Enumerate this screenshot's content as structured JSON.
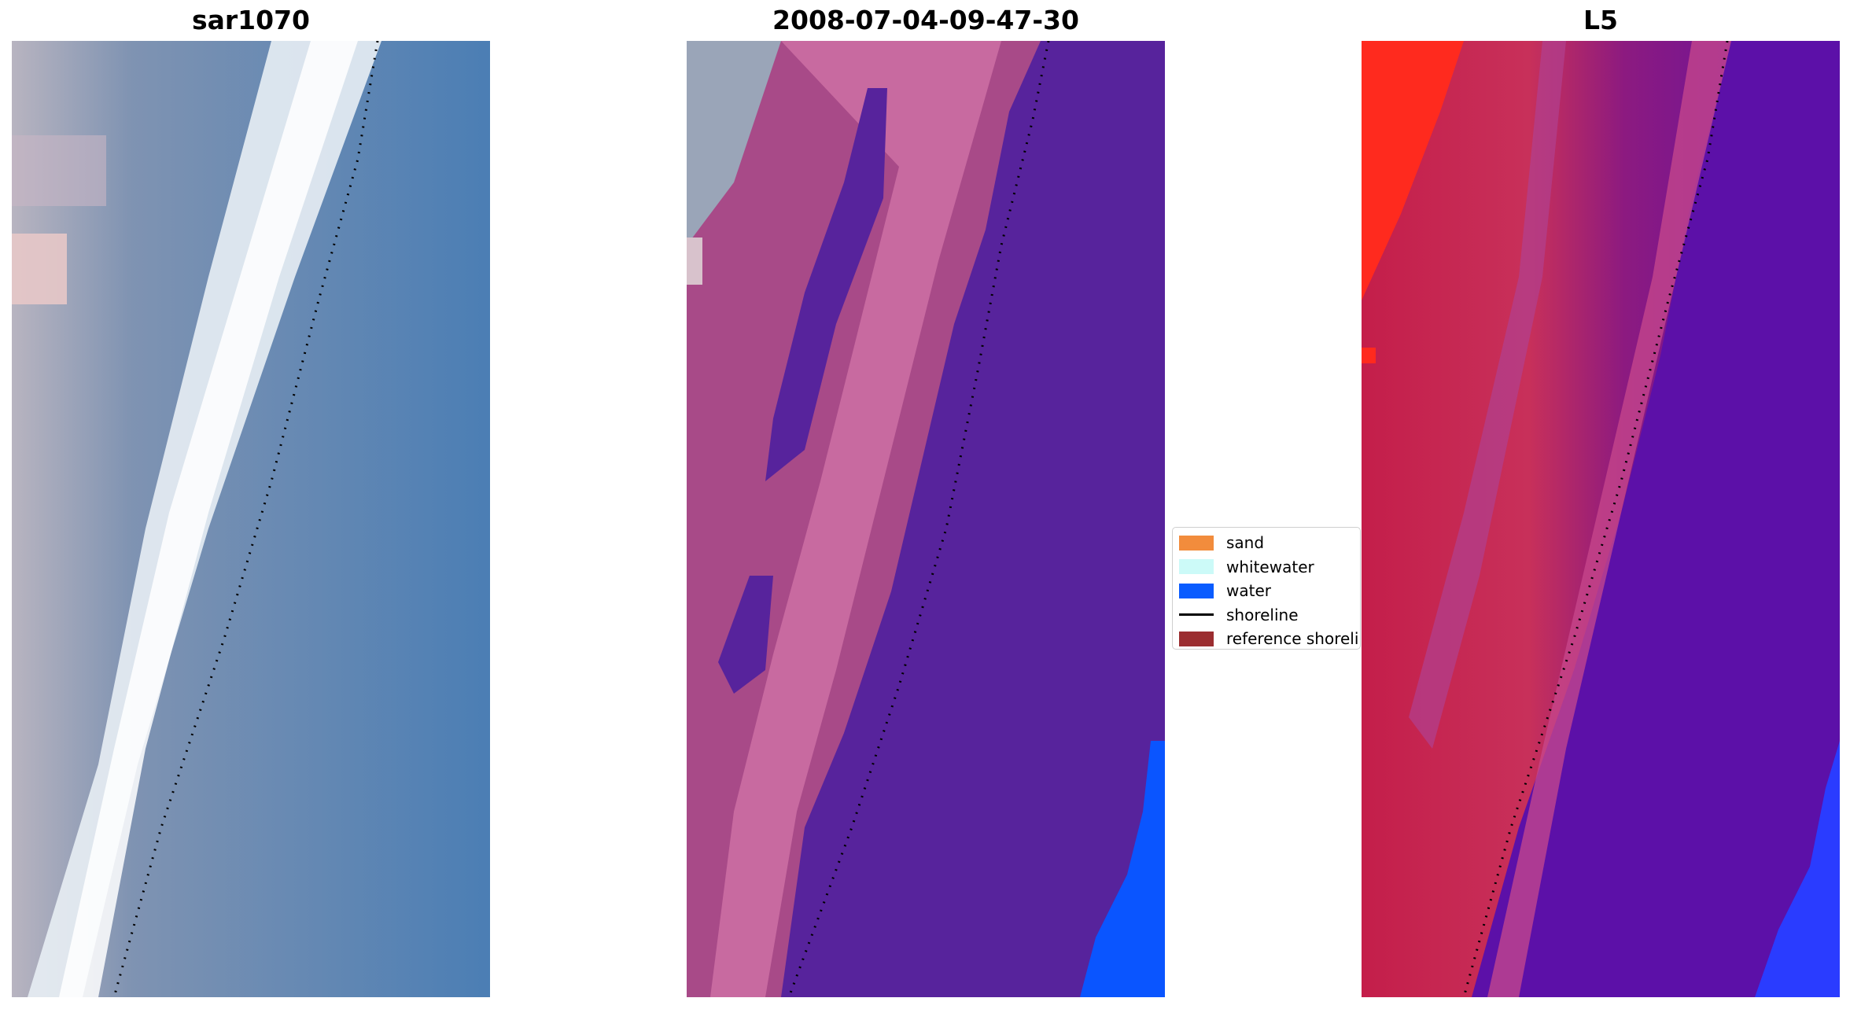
{
  "panels": [
    {
      "title": "sar1070"
    },
    {
      "title": "2008-07-04-09-47-30"
    },
    {
      "title": "L5"
    }
  ],
  "legend": {
    "items": [
      {
        "label": "sand",
        "color": "#f28c3c",
        "kind": "patch"
      },
      {
        "label": "whitewater",
        "color": "#ccfaf8",
        "kind": "patch"
      },
      {
        "label": "water",
        "color": "#0a5cff",
        "kind": "patch"
      },
      {
        "label": "shoreline",
        "color": "#000000",
        "kind": "line"
      },
      {
        "label": "reference shoreline",
        "color": "#9b2d30",
        "kind": "patch"
      }
    ]
  },
  "colors": {
    "rgb_water": "#4a7fb6",
    "rgb_foam": "#f4f6f8",
    "class_water": "#57239c",
    "class_sand": "#c05f96",
    "class_ocean": "#0a55ff",
    "mndwi_land": "#c8204c",
    "mndwi_water": "#5c10a8",
    "mndwi_bright": "#ff2a1e"
  }
}
